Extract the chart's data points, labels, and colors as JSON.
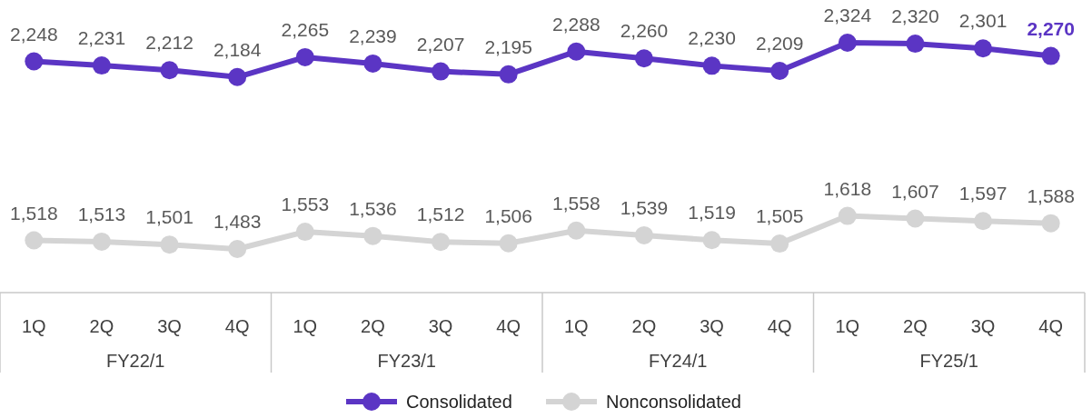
{
  "chart_data": {
    "type": "line",
    "categories": [
      "1Q",
      "2Q",
      "3Q",
      "4Q",
      "1Q",
      "2Q",
      "3Q",
      "4Q",
      "1Q",
      "2Q",
      "3Q",
      "4Q",
      "1Q",
      "2Q",
      "3Q",
      "4Q"
    ],
    "annotations": [
      "FY22/1",
      "FY23/1",
      "FY24/1",
      "FY25/1"
    ],
    "series": [
      {
        "name": "Consolidated",
        "color": "#5b35c4",
        "values": [
          2248,
          2231,
          2212,
          2184,
          2265,
          2239,
          2207,
          2195,
          2288,
          2260,
          2230,
          2209,
          2324,
          2320,
          2301,
          2270
        ],
        "value_labels": [
          "2,248",
          "2,231",
          "2,212",
          "2,184",
          "2,265",
          "2,239",
          "2,207",
          "2,195",
          "2,288",
          "2,260",
          "2,230",
          "2,209",
          "2,324",
          "2,320",
          "2,301",
          "2,270"
        ]
      },
      {
        "name": "Nonconsolidated",
        "color": "#d4d4d4",
        "values": [
          1518,
          1513,
          1501,
          1483,
          1553,
          1536,
          1512,
          1506,
          1558,
          1539,
          1519,
          1505,
          1618,
          1607,
          1597,
          1588
        ],
        "value_labels": [
          "1,518",
          "1,513",
          "1,501",
          "1,483",
          "1,553",
          "1,536",
          "1,512",
          "1,506",
          "1,558",
          "1,539",
          "1,519",
          "1,505",
          "1,618",
          "1,607",
          "1,597",
          "1,588"
        ]
      }
    ],
    "marker": "circle",
    "legend": "bottom"
  }
}
